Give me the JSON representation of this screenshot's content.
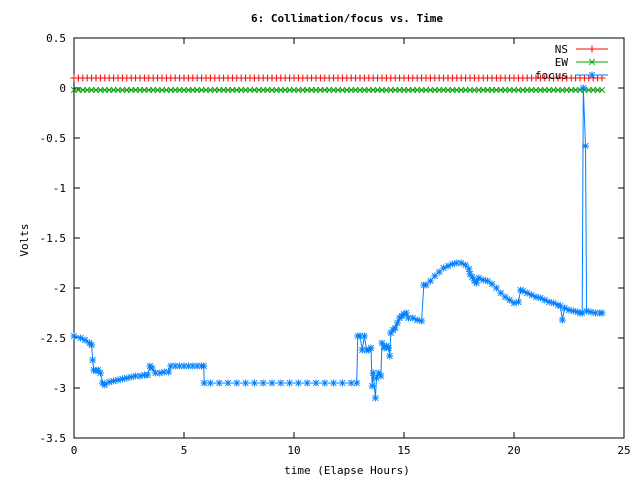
{
  "chart_data": {
    "type": "line",
    "title": "6: Collimation/focus vs. Time",
    "xlabel": "time (Elapse Hours)",
    "ylabel": "Volts",
    "xlim": [
      0,
      25
    ],
    "ylim": [
      -3.5,
      0.5
    ],
    "x_ticks": [
      0,
      5,
      10,
      15,
      20,
      25
    ],
    "x_tick_labels": [
      "0",
      "5",
      "10",
      "15",
      "20",
      "25"
    ],
    "y_ticks": [
      -3.5,
      -3,
      -2.5,
      -2,
      -1.5,
      -1,
      -0.5,
      0,
      0.5
    ],
    "y_tick_labels": [
      "-3.5",
      "-3",
      "-2.5",
      "-2",
      "-1.5",
      "-1",
      "-0.5",
      "0",
      "0.5"
    ],
    "grid": false,
    "legend_position": "top-right",
    "series": [
      {
        "name": "NS",
        "color": "#ff0000",
        "marker": "plus",
        "x_start": 0,
        "x_end": 24,
        "step": 0.2,
        "value": 0.1
      },
      {
        "name": "EW",
        "color": "#00a000",
        "marker": "cross",
        "x_start": 0,
        "x_end": 24,
        "step": 0.2,
        "value": -0.02
      },
      {
        "name": "focus",
        "color": "#0080ff",
        "marker": "star",
        "points": [
          [
            0,
            -2.48
          ],
          [
            0.3,
            -2.5
          ],
          [
            0.5,
            -2.52
          ],
          [
            0.7,
            -2.55
          ],
          [
            0.8,
            -2.57
          ],
          [
            0.85,
            -2.72
          ],
          [
            0.9,
            -2.82
          ],
          [
            1.0,
            -2.83
          ],
          [
            1.1,
            -2.82
          ],
          [
            1.2,
            -2.85
          ],
          [
            1.3,
            -2.95
          ],
          [
            1.4,
            -2.97
          ],
          [
            1.6,
            -2.94
          ],
          [
            1.8,
            -2.93
          ],
          [
            2.0,
            -2.92
          ],
          [
            2.2,
            -2.91
          ],
          [
            2.4,
            -2.9
          ],
          [
            2.6,
            -2.89
          ],
          [
            2.8,
            -2.88
          ],
          [
            3.0,
            -2.88
          ],
          [
            3.2,
            -2.87
          ],
          [
            3.35,
            -2.87
          ],
          [
            3.45,
            -2.78
          ],
          [
            3.55,
            -2.8
          ],
          [
            3.7,
            -2.85
          ],
          [
            3.9,
            -2.85
          ],
          [
            4.1,
            -2.84
          ],
          [
            4.3,
            -2.84
          ],
          [
            4.4,
            -2.78
          ],
          [
            4.6,
            -2.78
          ],
          [
            4.8,
            -2.78
          ],
          [
            5.0,
            -2.78
          ],
          [
            5.2,
            -2.78
          ],
          [
            5.4,
            -2.78
          ],
          [
            5.6,
            -2.78
          ],
          [
            5.8,
            -2.78
          ],
          [
            5.9,
            -2.78
          ],
          [
            5.92,
            -2.95
          ],
          [
            6.2,
            -2.95
          ],
          [
            6.6,
            -2.95
          ],
          [
            7.0,
            -2.95
          ],
          [
            7.4,
            -2.95
          ],
          [
            7.8,
            -2.95
          ],
          [
            8.2,
            -2.95
          ],
          [
            8.6,
            -2.95
          ],
          [
            9.0,
            -2.95
          ],
          [
            9.4,
            -2.95
          ],
          [
            9.8,
            -2.95
          ],
          [
            10.2,
            -2.95
          ],
          [
            10.6,
            -2.95
          ],
          [
            11.0,
            -2.95
          ],
          [
            11.4,
            -2.95
          ],
          [
            11.8,
            -2.95
          ],
          [
            12.2,
            -2.95
          ],
          [
            12.6,
            -2.95
          ],
          [
            12.85,
            -2.95
          ],
          [
            12.9,
            -2.48
          ],
          [
            13.0,
            -2.48
          ],
          [
            13.1,
            -2.62
          ],
          [
            13.2,
            -2.48
          ],
          [
            13.3,
            -2.62
          ],
          [
            13.4,
            -2.62
          ],
          [
            13.5,
            -2.6
          ],
          [
            13.55,
            -2.98
          ],
          [
            13.6,
            -2.85
          ],
          [
            13.7,
            -3.1
          ],
          [
            13.75,
            -2.9
          ],
          [
            13.85,
            -2.85
          ],
          [
            13.95,
            -2.88
          ],
          [
            14.0,
            -2.55
          ],
          [
            14.1,
            -2.6
          ],
          [
            14.2,
            -2.58
          ],
          [
            14.3,
            -2.6
          ],
          [
            14.35,
            -2.68
          ],
          [
            14.4,
            -2.45
          ],
          [
            14.5,
            -2.42
          ],
          [
            14.6,
            -2.4
          ],
          [
            14.7,
            -2.35
          ],
          [
            14.8,
            -2.3
          ],
          [
            14.9,
            -2.28
          ],
          [
            15.0,
            -2.26
          ],
          [
            15.1,
            -2.25
          ],
          [
            15.2,
            -2.3
          ],
          [
            15.4,
            -2.3
          ],
          [
            15.6,
            -2.32
          ],
          [
            15.8,
            -2.33
          ],
          [
            15.9,
            -1.97
          ],
          [
            16.0,
            -1.97
          ],
          [
            16.2,
            -1.93
          ],
          [
            16.4,
            -1.88
          ],
          [
            16.6,
            -1.84
          ],
          [
            16.8,
            -1.8
          ],
          [
            17.0,
            -1.78
          ],
          [
            17.2,
            -1.76
          ],
          [
            17.4,
            -1.75
          ],
          [
            17.6,
            -1.75
          ],
          [
            17.8,
            -1.77
          ],
          [
            17.95,
            -1.81
          ],
          [
            18.0,
            -1.86
          ],
          [
            18.1,
            -1.89
          ],
          [
            18.2,
            -1.93
          ],
          [
            18.3,
            -1.95
          ],
          [
            18.4,
            -1.9
          ],
          [
            18.6,
            -1.92
          ],
          [
            18.8,
            -1.93
          ],
          [
            19.0,
            -1.96
          ],
          [
            19.2,
            -2.0
          ],
          [
            19.4,
            -2.05
          ],
          [
            19.6,
            -2.09
          ],
          [
            19.8,
            -2.12
          ],
          [
            20.0,
            -2.15
          ],
          [
            20.2,
            -2.14
          ],
          [
            20.3,
            -2.02
          ],
          [
            20.4,
            -2.03
          ],
          [
            20.6,
            -2.05
          ],
          [
            20.8,
            -2.07
          ],
          [
            21.0,
            -2.09
          ],
          [
            21.2,
            -2.1
          ],
          [
            21.4,
            -2.12
          ],
          [
            21.6,
            -2.14
          ],
          [
            21.8,
            -2.15
          ],
          [
            22.0,
            -2.17
          ],
          [
            22.1,
            -2.18
          ],
          [
            22.2,
            -2.32
          ],
          [
            22.3,
            -2.2
          ],
          [
            22.5,
            -2.22
          ],
          [
            22.7,
            -2.23
          ],
          [
            22.9,
            -2.24
          ],
          [
            23.0,
            -2.25
          ],
          [
            23.1,
            -2.25
          ],
          [
            23.15,
            0.0
          ],
          [
            23.25,
            -0.58
          ],
          [
            23.3,
            -2.23
          ],
          [
            23.5,
            -2.24
          ],
          [
            23.7,
            -2.25
          ],
          [
            23.9,
            -2.25
          ],
          [
            24.0,
            -2.25
          ]
        ]
      }
    ]
  }
}
